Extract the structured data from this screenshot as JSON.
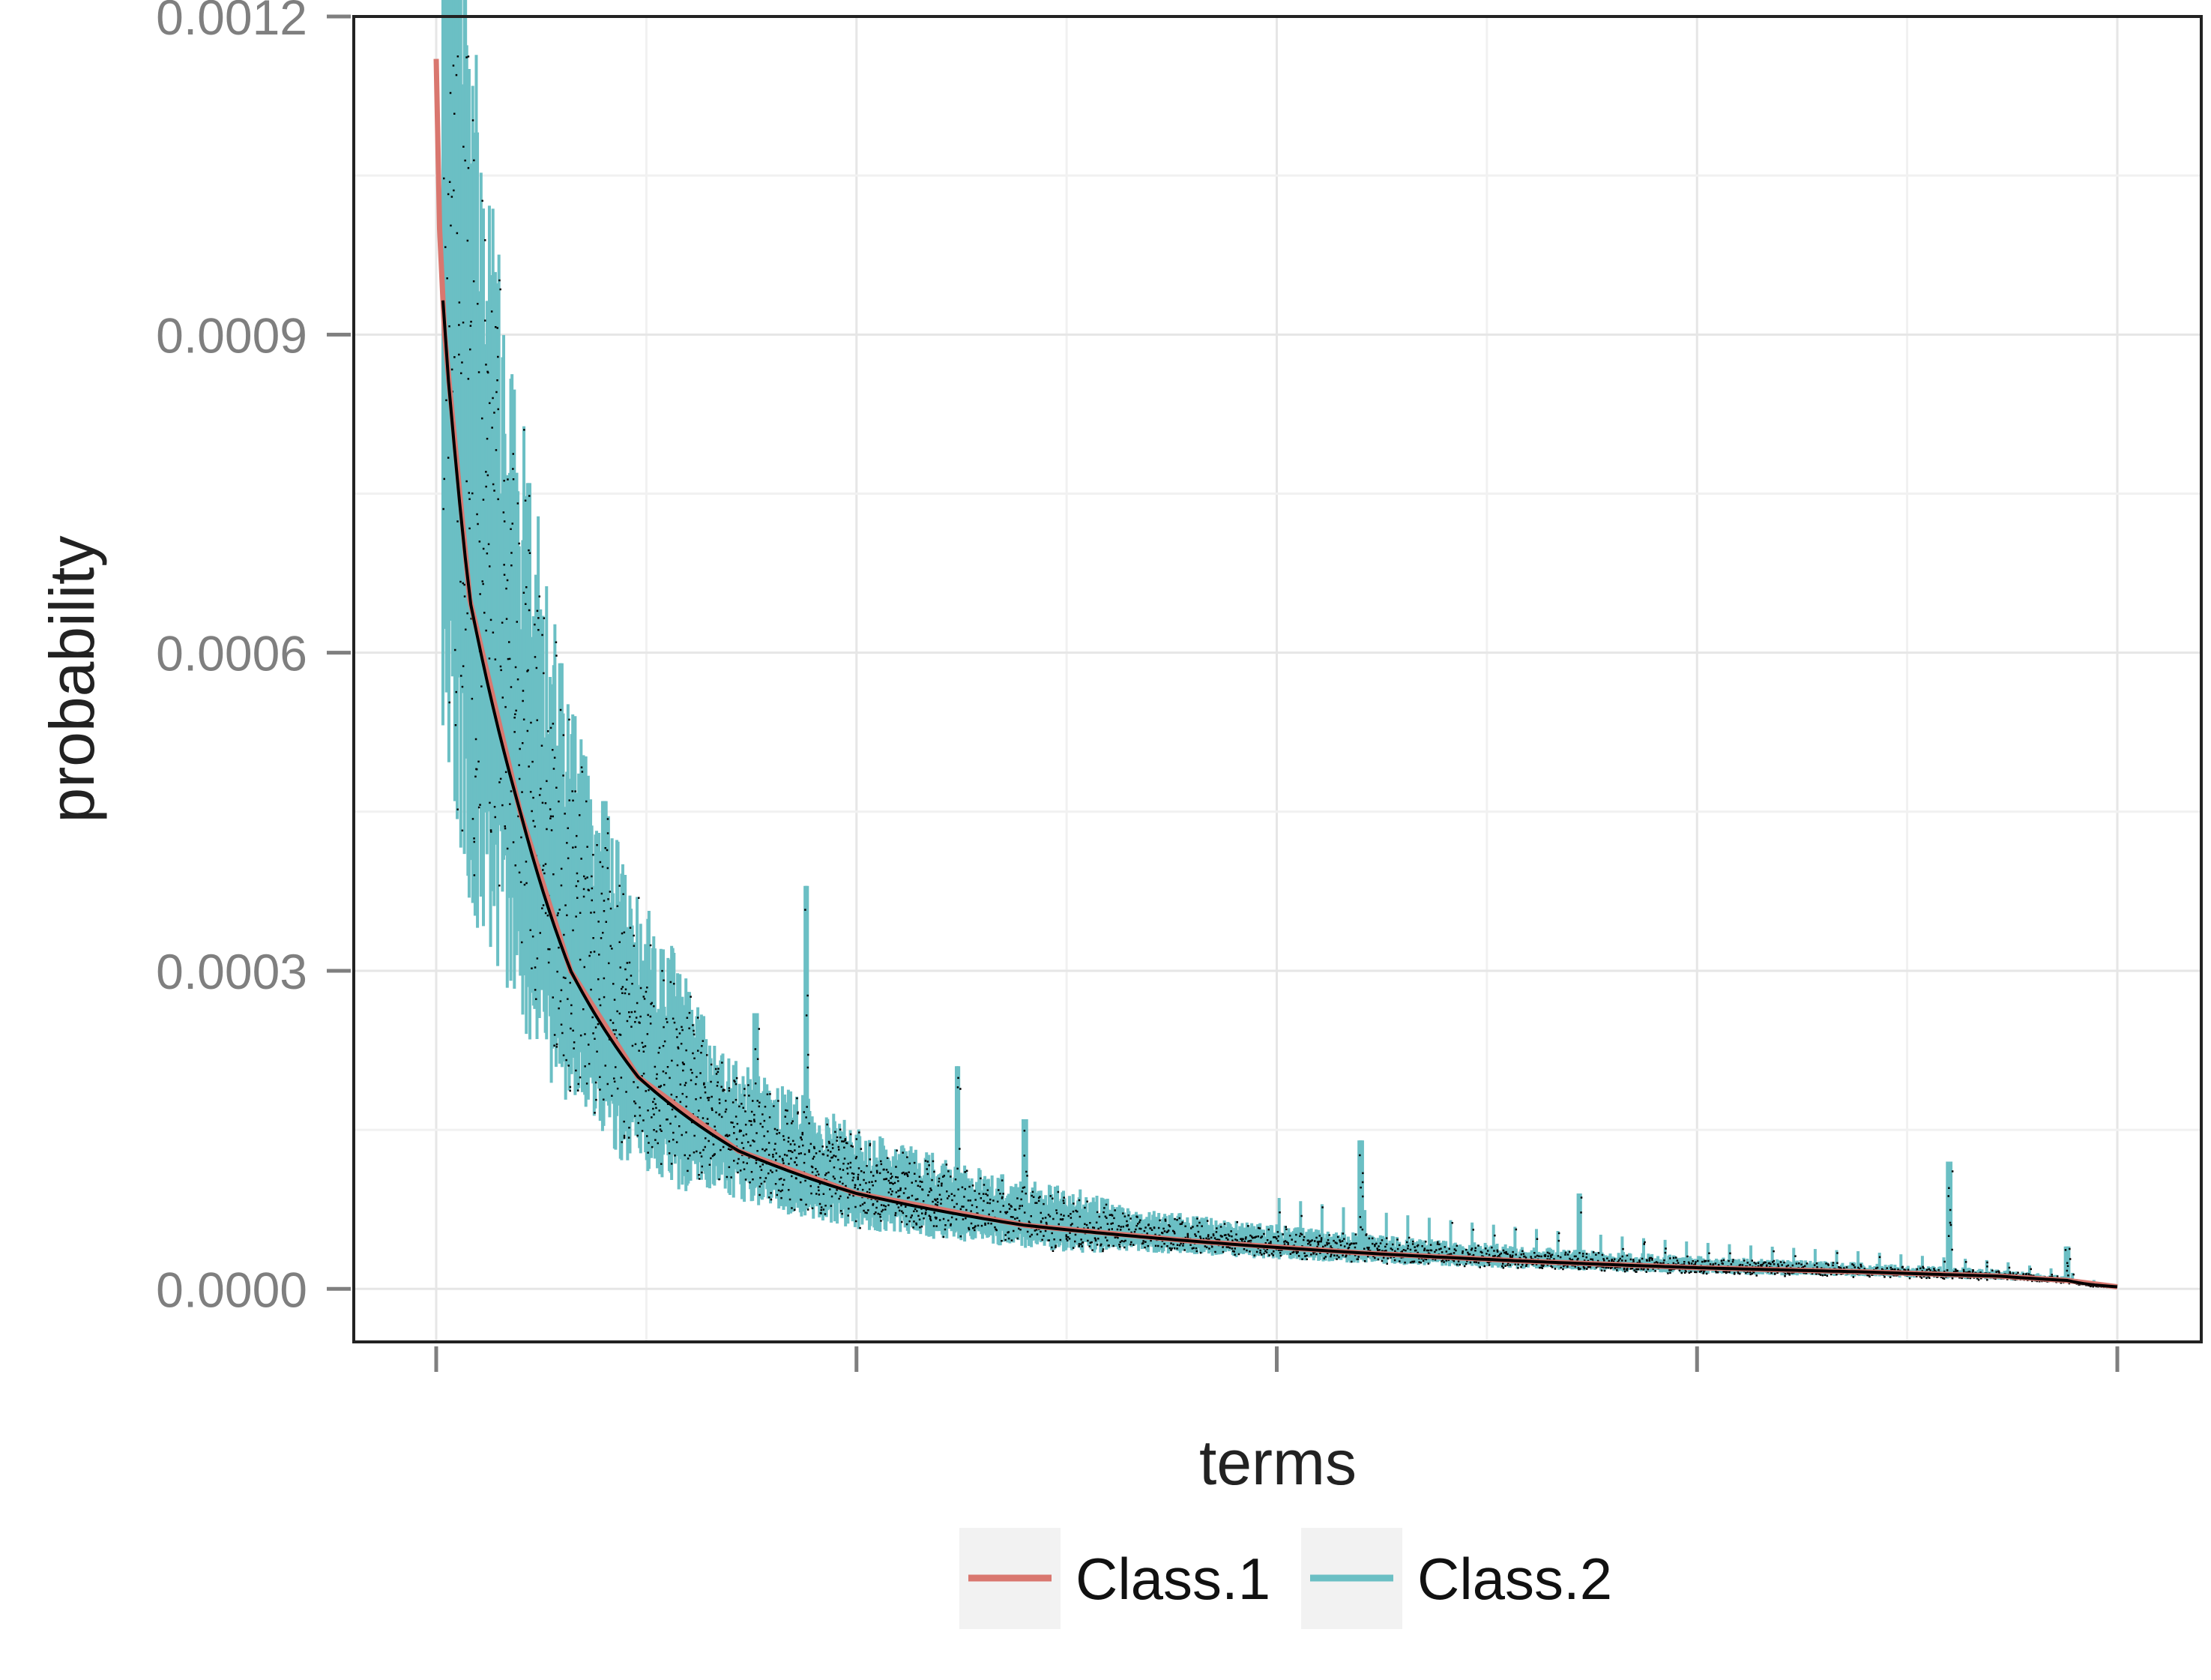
{
  "chart_data": {
    "type": "line",
    "title": "",
    "xlabel": "terms",
    "ylabel": "probability",
    "x_tick_count": 5,
    "ylim": [
      -5e-05,
      0.0012
    ],
    "y_ticks": [
      0.0,
      0.0003,
      0.0006,
      0.0009,
      0.0012
    ],
    "y_tick_labels": [
      "0.0000",
      "0.0003",
      "0.0006",
      "0.0009",
      "0.0012"
    ],
    "grid": true,
    "legend_position": "bottom",
    "series": [
      {
        "name": "Class.1",
        "color": "#d9776f"
      },
      {
        "name": "Class.2",
        "color": "#6bbfc4"
      }
    ],
    "class1_curve": [
      [
        0.0,
        0.00116
      ],
      [
        0.002,
        0.001
      ],
      [
        0.005,
        0.0009
      ],
      [
        0.02,
        0.00065
      ],
      [
        0.05,
        0.00045
      ],
      [
        0.08,
        0.0003
      ],
      [
        0.12,
        0.0002
      ],
      [
        0.18,
        0.00013
      ],
      [
        0.25,
        9e-05
      ],
      [
        0.35,
        6e-05
      ],
      [
        0.45,
        4.5e-05
      ],
      [
        0.55,
        3.4e-05
      ],
      [
        0.65,
        2.6e-05
      ],
      [
        0.75,
        2e-05
      ],
      [
        0.85,
        1.6e-05
      ],
      [
        0.93,
        1.2e-05
      ],
      [
        0.97,
        8e-06
      ],
      [
        1.0,
        2e-06
      ]
    ],
    "class2_spikes": [
      [
        0.02,
        0.00093
      ],
      [
        0.027,
        0.00079
      ],
      [
        0.055,
        0.00076
      ],
      [
        0.06,
        0.00066
      ],
      [
        0.074,
        0.00059
      ],
      [
        0.1,
        0.00046
      ],
      [
        0.15,
        0.00028
      ],
      [
        0.19,
        0.00026
      ],
      [
        0.22,
        0.00038
      ],
      [
        0.31,
        0.00021
      ],
      [
        0.35,
        0.00016
      ],
      [
        0.55,
        0.00014
      ],
      [
        0.68,
        9e-05
      ],
      [
        0.9,
        0.00012
      ],
      [
        0.97,
        4e-05
      ]
    ]
  }
}
